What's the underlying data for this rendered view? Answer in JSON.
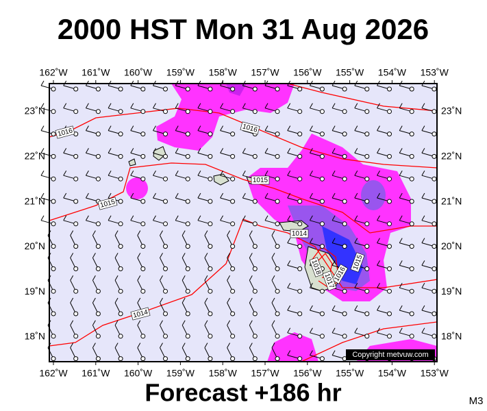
{
  "title": "2000 HST Mon 31 Aug 2026",
  "footer": "Forecast +186 hr",
  "model": "M3",
  "copyright": "Copyright metvuw.com",
  "map": {
    "lon_labels": [
      "162˚W",
      "161˚W",
      "160˚W",
      "159˚W",
      "158˚W",
      "157˚W",
      "156˚W",
      "155˚W",
      "154˚W",
      "153˚W"
    ],
    "lat_labels": [
      "23˚N",
      "22˚N",
      "21˚N",
      "20˚N",
      "19˚N",
      "18˚N"
    ],
    "isobar_labels": [
      "1016",
      "1016",
      "1015",
      "1015",
      "1014",
      "1014",
      "1015",
      "1016",
      "1018",
      "1017"
    ]
  }
}
